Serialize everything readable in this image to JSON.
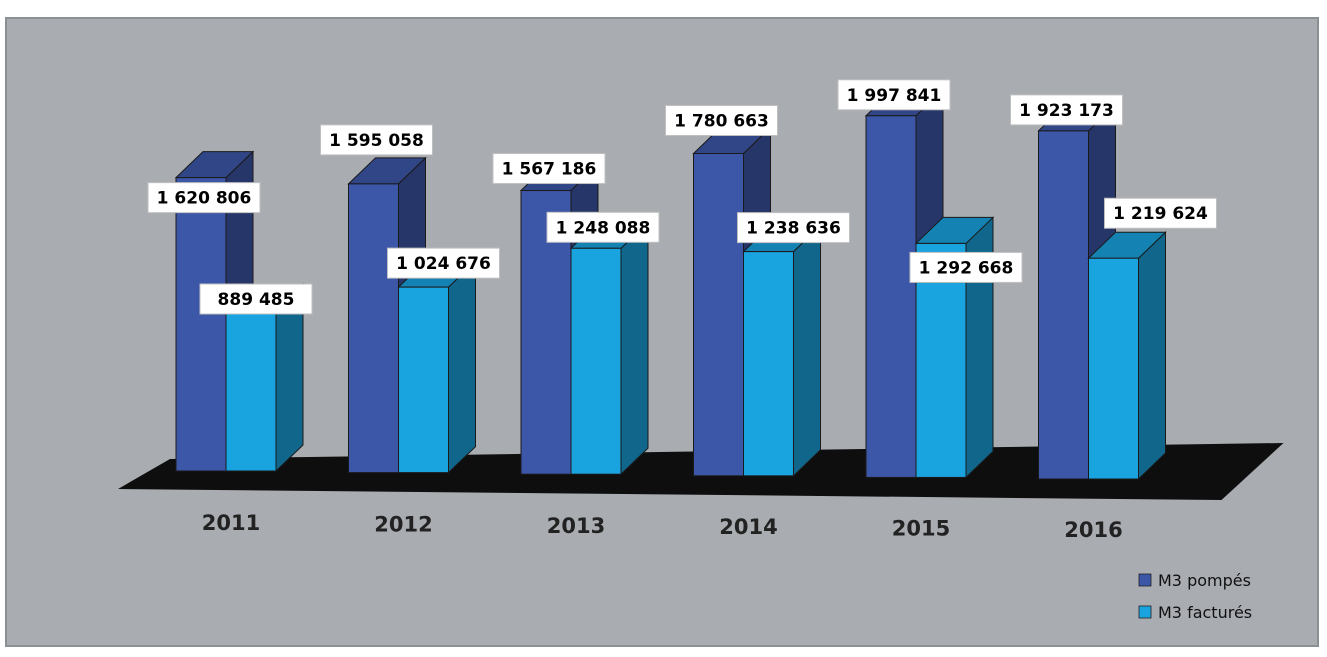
{
  "chart_data": {
    "type": "bar",
    "categories": [
      "2011",
      "2012",
      "2013",
      "2014",
      "2015",
      "2016"
    ],
    "series": [
      {
        "name": "M3 pompés",
        "values": [
          1620806,
          1595058,
          1567186,
          1780663,
          1997841,
          1923173
        ],
        "labels": [
          "1 620 806",
          "1 595 058",
          "1 567 186",
          "1 780 663",
          "1 997 841",
          "1 923 173"
        ],
        "color": "#3D57A8"
      },
      {
        "name": "M3 facturés",
        "values": [
          889485,
          1024676,
          1248088,
          1238636,
          1292668,
          1219624
        ],
        "labels": [
          "889 485",
          "1 024 676",
          "1 248 088",
          "1 238 636",
          "1 292 668",
          "1 219 624"
        ],
        "color": "#19A4E0"
      }
    ],
    "ylim": [
      0,
      2000000
    ],
    "grid": false,
    "legend_position": "bottom-right",
    "background_color": "#A9ACB1",
    "floor_color": "#0E0E0E"
  }
}
